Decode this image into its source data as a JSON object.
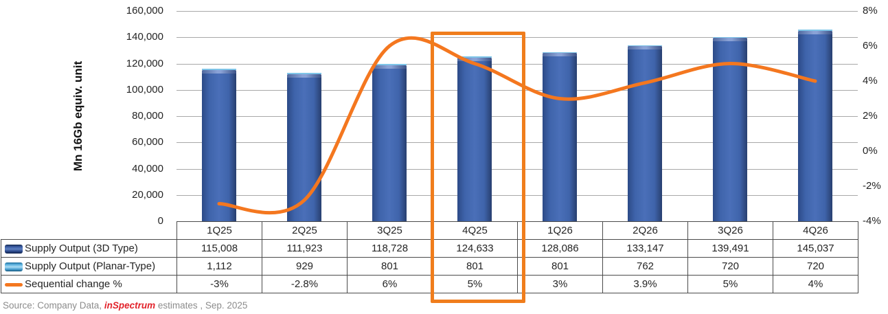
{
  "chart": {
    "y_axis_title": "Mn 16Gb equiv. unit",
    "left_ticks": [
      "160,000",
      "140,000",
      "120,000",
      "100,000",
      "80,000",
      "60,000",
      "40,000",
      "20,000",
      "0"
    ],
    "right_ticks": [
      "8%",
      "6%",
      "4%",
      "2%",
      "0%",
      "-2%",
      "-4%"
    ]
  },
  "chart_data": {
    "type": "bar+line",
    "categories": [
      "1Q25",
      "2Q25",
      "3Q25",
      "4Q25",
      "1Q26",
      "2Q26",
      "3Q26",
      "4Q26"
    ],
    "series": [
      {
        "name": "Supply Output (3D Type)",
        "type": "bar",
        "axis": "left",
        "color": "#3f62a9",
        "values": [
          115008,
          111923,
          118728,
          124633,
          128086,
          133147,
          139491,
          145037
        ]
      },
      {
        "name": "Supply Output (Planar-Type)",
        "type": "bar",
        "axis": "left",
        "color": "#7ec5e8",
        "values": [
          1112,
          929,
          801,
          801,
          801,
          762,
          720,
          720
        ]
      },
      {
        "name": "Sequential change %",
        "type": "line",
        "axis": "right",
        "color": "#f4771f",
        "values": [
          -3,
          -2.8,
          6,
          5,
          3,
          3.9,
          5,
          4
        ]
      }
    ],
    "left_axis": {
      "title": "Mn 16Gb equiv. unit",
      "min": 0,
      "max": 160000,
      "step": 20000
    },
    "right_axis": {
      "min": -4,
      "max": 8,
      "step": 2,
      "format": "percent"
    },
    "highlight_category": "4Q25",
    "grid": true,
    "legend_position": "table-left"
  },
  "table": {
    "header": [
      "1Q25",
      "2Q25",
      "3Q25",
      "4Q25",
      "1Q26",
      "2Q26",
      "3Q26",
      "4Q26"
    ],
    "rows": [
      {
        "label": "Supply Output (3D Type)",
        "swatch": "bar-3d",
        "values": [
          "115,008",
          "111,923",
          "118,728",
          "124,633",
          "128,086",
          "133,147",
          "139,491",
          "145,037"
        ]
      },
      {
        "label": "Supply Output (Planar-Type)",
        "swatch": "bar-planar",
        "values": [
          "1,112",
          "929",
          "801",
          "801",
          "801",
          "762",
          "720",
          "720"
        ]
      },
      {
        "label": "Sequential change %",
        "swatch": "line",
        "values": [
          "-3%",
          "-2.8%",
          "6%",
          "5%",
          "3%",
          "3.9%",
          "5%",
          "4%"
        ]
      }
    ]
  },
  "source": {
    "prefix": "Source: Company Data, ",
    "brand": "inSpectrum",
    "suffix": " estimates , Sep. 2025"
  },
  "colors": {
    "bar_3d": "#3f62a9",
    "bar_planar": "#7ec5e8",
    "line": "#f4771f",
    "highlight": "#f07d1c",
    "gridline": "#a8a8a8"
  }
}
